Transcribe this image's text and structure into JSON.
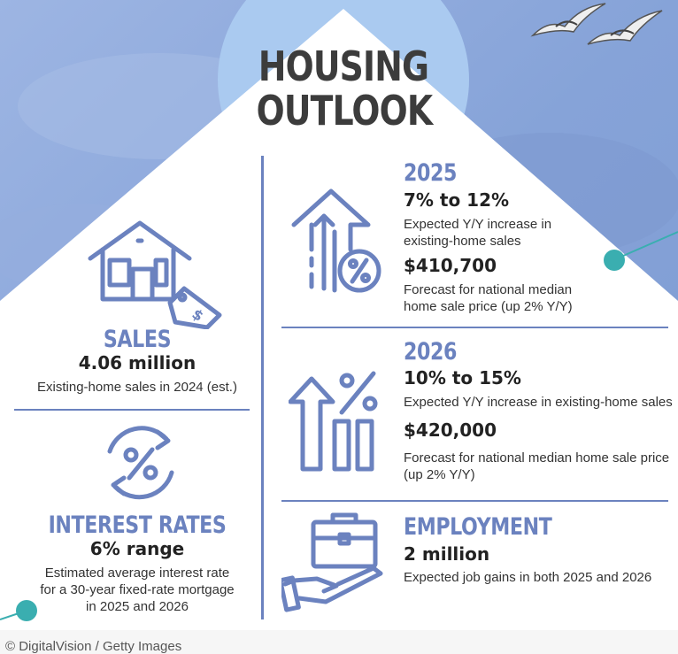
{
  "title": {
    "line1": "HOUSING",
    "line2": "OUTLOOK"
  },
  "colors": {
    "sky": "#8aa7db",
    "accent": "#6b82bf",
    "teal": "#3aaeb0",
    "text": "#222222"
  },
  "sales": {
    "heading": "SALES",
    "value": "4.06 million",
    "desc": "Existing-home sales in 2024 (est.)",
    "icon": "house-price-tag-icon"
  },
  "interest": {
    "heading": "INTEREST RATES",
    "value": "6% range",
    "desc_line1": "Estimated average interest rate",
    "desc_line2": "for a 30-year fixed-rate mortgage",
    "desc_line3": "in 2025 and 2026",
    "icon": "percent-cycle-icon"
  },
  "y2025": {
    "heading": "2025",
    "range": "7% to 12%",
    "range_desc_line1": "Expected Y/Y increase in",
    "range_desc_line2": "existing-home sales",
    "price": "$410,700",
    "price_desc_line1": "Forecast for national median",
    "price_desc_line2": "home sale price (up 2% Y/Y)",
    "icon": "arrows-up-percent-icon"
  },
  "y2026": {
    "heading": "2026",
    "range": "10% to 15%",
    "range_desc": "Expected Y/Y increase in existing-home sales",
    "price": "$420,000",
    "price_desc_line1": "Forecast for national median home sale price",
    "price_desc_line2": "(up 2% Y/Y)",
    "icon": "arrow-bars-percent-icon"
  },
  "employment": {
    "heading": "EMPLOYMENT",
    "value": "2 million",
    "desc": "Expected job gains in both 2025 and 2026",
    "icon": "hand-briefcase-icon"
  },
  "credit": "© DigitalVision / Getty Images"
}
